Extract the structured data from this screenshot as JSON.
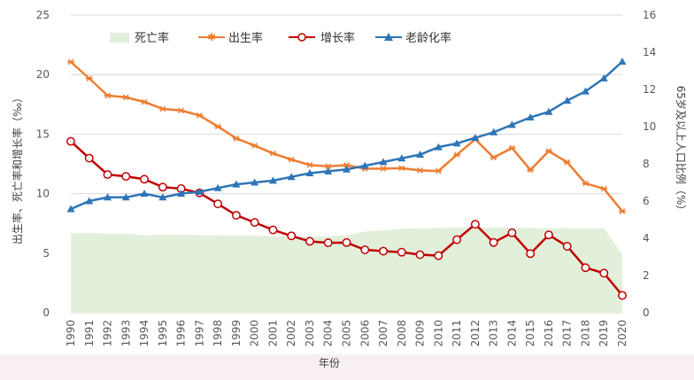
{
  "chart_data": {
    "type": "line",
    "x": [
      1990,
      1991,
      1992,
      1993,
      1994,
      1995,
      1996,
      1997,
      1998,
      1999,
      2000,
      2001,
      2002,
      2003,
      2004,
      2005,
      2006,
      2007,
      2008,
      2009,
      2010,
      2011,
      2012,
      2013,
      2014,
      2015,
      2016,
      2017,
      2018,
      2019,
      2020
    ],
    "x_tick_labels": [
      "1990",
      "1991",
      "1992",
      "1993",
      "1994",
      "1995",
      "1996",
      "1997",
      "1998",
      "1999",
      "2000",
      "2001",
      "2002",
      "2003",
      "2004",
      "2005",
      "2006",
      "2007",
      "2008",
      "2009",
      "2010",
      "2011",
      "2012",
      "2013",
      "2014",
      "2015",
      "2016",
      "2017",
      "2018",
      "2019",
      "2020"
    ],
    "series": [
      {
        "name": "死亡率",
        "kind": "area",
        "axis": "left",
        "color": "#e2efda",
        "values": [
          6.67,
          6.7,
          6.64,
          6.64,
          6.49,
          6.57,
          6.56,
          6.51,
          6.5,
          6.46,
          6.45,
          6.43,
          6.41,
          6.4,
          6.42,
          6.51,
          6.81,
          6.93,
          7.06,
          7.08,
          7.11,
          7.14,
          7.13,
          7.13,
          7.12,
          7.11,
          7.09,
          7.11,
          7.08,
          7.09,
          4.9
        ]
      },
      {
        "name": "出生率",
        "kind": "line",
        "axis": "left",
        "color": "#ed7d31",
        "marker": "star",
        "values": [
          21.06,
          19.68,
          18.24,
          18.09,
          17.7,
          17.12,
          16.98,
          16.57,
          15.64,
          14.64,
          14.03,
          13.38,
          12.86,
          12.41,
          12.29,
          12.4,
          12.09,
          12.1,
          12.14,
          11.95,
          11.9,
          13.27,
          14.57,
          13.03,
          13.83,
          11.99,
          13.57,
          12.64,
          10.86,
          10.41,
          8.52
        ]
      },
      {
        "name": "增长率",
        "kind": "line",
        "axis": "left",
        "color": "#c00000",
        "marker": "circle",
        "values": [
          14.39,
          12.98,
          11.6,
          11.45,
          11.21,
          10.55,
          10.42,
          10.06,
          9.14,
          8.18,
          7.58,
          6.95,
          6.45,
          5.99,
          5.87,
          5.89,
          5.28,
          5.17,
          5.08,
          4.87,
          4.79,
          6.13,
          7.43,
          5.9,
          6.71,
          4.96,
          6.53,
          5.58,
          3.78,
          3.32,
          1.45
        ]
      },
      {
        "name": "老龄化率",
        "kind": "line",
        "axis": "right",
        "color": "#2e75b6",
        "marker": "triangle",
        "values": [
          5.57,
          6.0,
          6.2,
          6.2,
          6.4,
          6.2,
          6.4,
          6.5,
          6.7,
          6.9,
          7.0,
          7.1,
          7.3,
          7.5,
          7.6,
          7.7,
          7.9,
          8.1,
          8.3,
          8.5,
          8.9,
          9.1,
          9.4,
          9.7,
          10.1,
          10.5,
          10.8,
          11.4,
          11.9,
          12.6,
          13.5
        ]
      }
    ],
    "ylabel_left": "出生率、死亡率和增长率（‰）",
    "ylabel_right": "65岁及以上人口比例（%）",
    "xlabel": "年份",
    "ylim_left": [
      0,
      25
    ],
    "ylim_right": [
      0,
      16
    ],
    "yticks_left": [
      "0",
      "5",
      "10",
      "15",
      "20",
      "25"
    ],
    "yticks_right": [
      "0",
      "2",
      "4",
      "6",
      "8",
      "10",
      "12",
      "14",
      "16"
    ],
    "legend_position": "top-left",
    "grid": "horizontal"
  }
}
